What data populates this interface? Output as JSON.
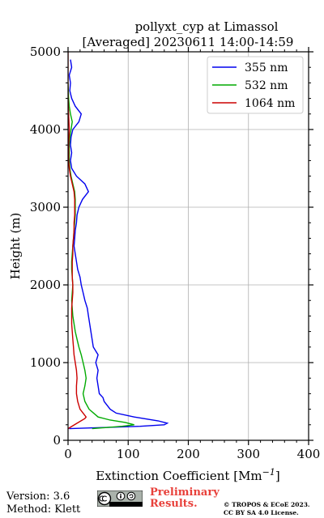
{
  "chart_data": {
    "type": "line",
    "title_line1": "pollyxt_cyp at Limassol",
    "title_line2": "[Averaged] 20230611 14:00-14:59",
    "xlabel": "Extinction Coefficient [Mm",
    "xlabel_sup": "−1",
    "xlabel_end": "]",
    "ylabel": "Height (m)",
    "xlim": [
      0,
      400
    ],
    "ylim": [
      0,
      5000
    ],
    "x_ticks": [
      0,
      100,
      200,
      300,
      400
    ],
    "y_ticks": [
      0,
      1000,
      2000,
      3000,
      4000,
      5000
    ],
    "grid": true,
    "legend_position": "top-right",
    "series": [
      {
        "name": "355 nm",
        "color": "#0000ee",
        "points": [
          [
            2,
            150
          ],
          [
            60,
            165
          ],
          [
            120,
            180
          ],
          [
            160,
            200
          ],
          [
            165,
            220
          ],
          [
            150,
            250
          ],
          [
            110,
            300
          ],
          [
            80,
            350
          ],
          [
            70,
            400
          ],
          [
            65,
            450
          ],
          [
            60,
            500
          ],
          [
            58,
            550
          ],
          [
            52,
            600
          ],
          [
            50,
            700
          ],
          [
            48,
            800
          ],
          [
            50,
            900
          ],
          [
            46,
            1000
          ],
          [
            50,
            1100
          ],
          [
            42,
            1200
          ],
          [
            40,
            1300
          ],
          [
            38,
            1400
          ],
          [
            36,
            1500
          ],
          [
            34,
            1600
          ],
          [
            32,
            1700
          ],
          [
            28,
            1800
          ],
          [
            25,
            1900
          ],
          [
            22,
            2000
          ],
          [
            20,
            2100
          ],
          [
            16,
            2200
          ],
          [
            14,
            2300
          ],
          [
            12,
            2400
          ],
          [
            10,
            2500
          ],
          [
            11,
            2600
          ],
          [
            12,
            2700
          ],
          [
            14,
            2800
          ],
          [
            15,
            2900
          ],
          [
            18,
            3000
          ],
          [
            24,
            3100
          ],
          [
            34,
            3200
          ],
          [
            28,
            3300
          ],
          [
            14,
            3400
          ],
          [
            6,
            3500
          ],
          [
            4,
            3600
          ],
          [
            6,
            3700
          ],
          [
            4,
            3800
          ],
          [
            5,
            3900
          ],
          [
            8,
            4000
          ],
          [
            18,
            4100
          ],
          [
            22,
            4200
          ],
          [
            12,
            4300
          ],
          [
            6,
            4400
          ],
          [
            3,
            4500
          ],
          [
            4,
            4600
          ],
          [
            2,
            4700
          ],
          [
            6,
            4800
          ],
          [
            4,
            4900
          ]
        ]
      },
      {
        "name": "532 nm",
        "color": "#00aa00",
        "points": [
          [
            40,
            150
          ],
          [
            90,
            180
          ],
          [
            110,
            200
          ],
          [
            95,
            230
          ],
          [
            70,
            260
          ],
          [
            50,
            300
          ],
          [
            35,
            400
          ],
          [
            28,
            500
          ],
          [
            25,
            600
          ],
          [
            28,
            700
          ],
          [
            30,
            800
          ],
          [
            28,
            900
          ],
          [
            25,
            1000
          ],
          [
            22,
            1100
          ],
          [
            18,
            1200
          ],
          [
            15,
            1300
          ],
          [
            12,
            1400
          ],
          [
            10,
            1500
          ],
          [
            8,
            1600
          ],
          [
            7,
            1700
          ],
          [
            6,
            1800
          ],
          [
            7,
            1900
          ],
          [
            8,
            2000
          ],
          [
            7,
            2100
          ],
          [
            6,
            2200
          ],
          [
            6,
            2300
          ],
          [
            7,
            2400
          ],
          [
            8,
            2500
          ],
          [
            9,
            2600
          ],
          [
            10,
            2700
          ],
          [
            11,
            2800
          ],
          [
            12,
            2900
          ],
          [
            12,
            3000
          ],
          [
            12,
            3100
          ],
          [
            11,
            3200
          ],
          [
            8,
            3300
          ],
          [
            5,
            3400
          ],
          [
            3,
            3500
          ],
          [
            2,
            3600
          ],
          [
            2,
            3700
          ],
          [
            2,
            3800
          ],
          [
            3,
            3900
          ],
          [
            5,
            4000
          ],
          [
            7,
            4100
          ],
          [
            4,
            4200
          ],
          [
            2,
            4300
          ],
          [
            1,
            4400
          ],
          [
            0,
            4600
          ]
        ]
      },
      {
        "name": "1064 nm",
        "color": "#cc0000",
        "points": [
          [
            0,
            150
          ],
          [
            15,
            220
          ],
          [
            28,
            280
          ],
          [
            30,
            300
          ],
          [
            25,
            350
          ],
          [
            20,
            400
          ],
          [
            16,
            500
          ],
          [
            14,
            600
          ],
          [
            14,
            700
          ],
          [
            15,
            800
          ],
          [
            14,
            900
          ],
          [
            12,
            1000
          ],
          [
            10,
            1100
          ],
          [
            9,
            1200
          ],
          [
            8,
            1300
          ],
          [
            7,
            1400
          ],
          [
            6,
            1500
          ],
          [
            6,
            1600
          ],
          [
            6,
            1700
          ],
          [
            7,
            1800
          ],
          [
            8,
            1900
          ],
          [
            8,
            2000
          ],
          [
            7,
            2100
          ],
          [
            7,
            2200
          ],
          [
            7,
            2300
          ],
          [
            8,
            2400
          ],
          [
            8,
            2500
          ],
          [
            9,
            2600
          ],
          [
            10,
            2700
          ],
          [
            10,
            2800
          ],
          [
            11,
            2900
          ],
          [
            11,
            3000
          ],
          [
            11,
            3100
          ],
          [
            10,
            3200
          ],
          [
            7,
            3300
          ],
          [
            4,
            3400
          ],
          [
            2,
            3500
          ],
          [
            1,
            3600
          ],
          [
            1,
            3800
          ],
          [
            2,
            4000
          ],
          [
            1,
            4200
          ],
          [
            0,
            4400
          ],
          [
            0,
            4600
          ],
          [
            0,
            4800
          ],
          [
            0,
            5000
          ]
        ]
      }
    ]
  },
  "footer": {
    "version": "Version: 3.6",
    "method": "Method: Klett",
    "preliminary": "Preliminary Results.",
    "license_line1": "© TROPOS & ECoE 2023.",
    "license_line2": "CC BY SA 4.0 License."
  }
}
